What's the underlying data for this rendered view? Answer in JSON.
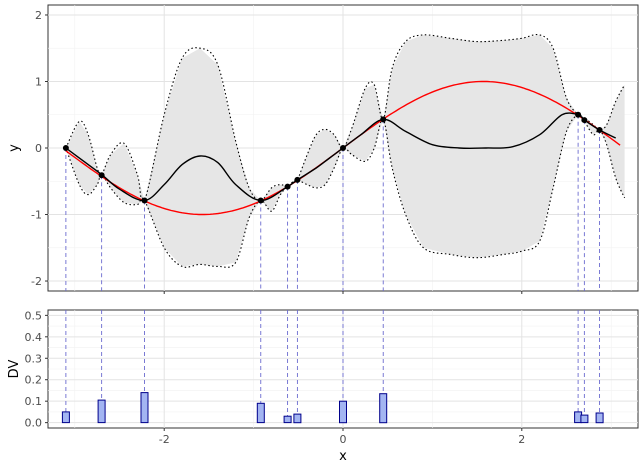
{
  "chart_data": [
    {
      "type": "line",
      "panel": "top",
      "xlabel": "",
      "ylabel": "y",
      "xlim": [
        -3.3,
        3.3
      ],
      "ylim": [
        -2.15,
        2.15
      ],
      "x_ticks": [
        -2,
        0,
        2
      ],
      "y_ticks": [
        -2,
        -1,
        0,
        1,
        2
      ],
      "y_tick_labels": [
        "-2",
        "-1",
        "0",
        "1",
        "2"
      ],
      "grid": true,
      "colors": {
        "truth": "#ff0000",
        "mean": "#000000",
        "band": "#e6e6e6",
        "points": "#000000",
        "guides": "#6b6bcf"
      },
      "series": [
        {
          "name": "",
          "role": "true-function",
          "function": "sin",
          "x_range": [
            -3.1,
            3.1
          ]
        },
        {
          "name": "",
          "role": "posterior-mean",
          "x": [
            -3.1,
            -2.9,
            -2.7,
            -2.5,
            -2.22,
            -2.0,
            -1.8,
            -1.6,
            -1.4,
            -1.2,
            -0.92,
            -0.62,
            -0.51,
            -0.3,
            -0.15,
            0.0,
            0.2,
            0.45,
            0.7,
            1.0,
            1.3,
            1.6,
            1.9,
            2.2,
            2.45,
            2.63,
            2.7,
            2.87,
            3.05
          ],
          "y": [
            0.0,
            -0.2,
            -0.4,
            -0.62,
            -0.79,
            -0.55,
            -0.25,
            -0.12,
            -0.22,
            -0.55,
            -0.79,
            -0.58,
            -0.48,
            -0.3,
            -0.15,
            0.0,
            0.2,
            0.43,
            0.25,
            0.05,
            0.0,
            0.0,
            0.02,
            0.2,
            0.5,
            0.5,
            0.42,
            0.27,
            0.15
          ]
        },
        {
          "name": "",
          "role": "upper-bound",
          "x": [
            -3.1,
            -2.95,
            -2.85,
            -2.75,
            -2.7,
            -2.6,
            -2.45,
            -2.3,
            -2.22,
            -2.0,
            -1.8,
            -1.6,
            -1.4,
            -1.2,
            -1.05,
            -0.92,
            -0.8,
            -0.7,
            -0.62,
            -0.55,
            -0.51,
            -0.4,
            -0.3,
            -0.2,
            -0.1,
            0.0,
            0.1,
            0.25,
            0.35,
            0.45,
            0.55,
            0.7,
            0.9,
            1.2,
            1.5,
            1.8,
            2.0,
            2.2,
            2.35,
            2.5,
            2.63,
            2.7,
            2.8,
            2.87,
            2.95,
            3.05,
            3.15
          ],
          "y": [
            0.0,
            0.4,
            0.2,
            -0.3,
            -0.4,
            -0.1,
            0.07,
            -0.4,
            -0.79,
            0.5,
            1.35,
            1.5,
            1.25,
            0.1,
            -0.6,
            -0.79,
            -0.6,
            -0.55,
            -0.58,
            -0.5,
            -0.48,
            -0.1,
            0.2,
            0.28,
            0.2,
            0.0,
            0.3,
            0.9,
            0.95,
            0.43,
            1.2,
            1.6,
            1.7,
            1.65,
            1.6,
            1.62,
            1.65,
            1.7,
            1.5,
            0.75,
            0.5,
            0.45,
            0.35,
            0.27,
            0.35,
            0.7,
            0.95
          ]
        },
        {
          "name": "",
          "role": "lower-bound",
          "x": [
            -3.1,
            -2.95,
            -2.85,
            -2.75,
            -2.7,
            -2.6,
            -2.45,
            -2.3,
            -2.22,
            -2.0,
            -1.8,
            -1.6,
            -1.4,
            -1.2,
            -1.05,
            -0.92,
            -0.8,
            -0.7,
            -0.62,
            -0.55,
            -0.51,
            -0.4,
            -0.3,
            -0.2,
            -0.1,
            0.0,
            0.1,
            0.25,
            0.35,
            0.45,
            0.55,
            0.7,
            0.9,
            1.2,
            1.5,
            1.8,
            2.0,
            2.2,
            2.35,
            2.5,
            2.63,
            2.7,
            2.8,
            2.87,
            2.95,
            3.05,
            3.15
          ],
          "y": [
            0.0,
            -0.55,
            -0.7,
            -0.55,
            -0.4,
            -0.6,
            -0.82,
            -0.85,
            -0.79,
            -1.5,
            -1.78,
            -1.75,
            -1.78,
            -1.72,
            -1.05,
            -0.79,
            -0.95,
            -0.7,
            -0.58,
            -0.5,
            -0.48,
            -0.55,
            -0.6,
            -0.55,
            -0.3,
            0.0,
            -0.1,
            -0.2,
            0.0,
            0.43,
            -0.3,
            -1.0,
            -1.5,
            -1.6,
            -1.65,
            -1.6,
            -1.55,
            -1.4,
            -0.6,
            0.25,
            0.5,
            0.4,
            0.2,
            0.27,
            0.05,
            -0.45,
            -0.75
          ]
        }
      ],
      "points": {
        "x": [
          -3.1,
          -2.7,
          -2.22,
          -0.92,
          -0.62,
          -0.51,
          0.0,
          0.45,
          2.63,
          2.7,
          2.87
        ],
        "y": [
          0.0,
          -0.41,
          -0.79,
          -0.79,
          -0.58,
          -0.48,
          0.0,
          0.43,
          0.5,
          0.42,
          0.27
        ]
      }
    },
    {
      "type": "bar",
      "panel": "bottom",
      "xlabel": "x",
      "ylabel": "DV",
      "xlim": [
        -3.3,
        3.3
      ],
      "ylim": [
        -0.025,
        0.525
      ],
      "x_ticks": [
        -2,
        0,
        2
      ],
      "x_tick_labels": [
        "-2",
        "0",
        "2"
      ],
      "y_ticks": [
        0.0,
        0.1,
        0.2,
        0.3,
        0.4,
        0.5
      ],
      "y_tick_labels": [
        "0.0",
        "0.1",
        "0.2",
        "0.3",
        "0.4",
        "0.5"
      ],
      "grid": true,
      "colors": {
        "bar_fill": "#a3b5f2",
        "bar_stroke": "#00008b",
        "guides": "#6b6bcf"
      },
      "x": [
        -3.1,
        -2.7,
        -2.22,
        -0.92,
        -0.62,
        -0.51,
        0.0,
        0.45,
        2.63,
        2.7,
        2.87
      ],
      "values": [
        0.05,
        0.105,
        0.14,
        0.09,
        0.03,
        0.04,
        0.1,
        0.135,
        0.05,
        0.035,
        0.045
      ]
    }
  ]
}
